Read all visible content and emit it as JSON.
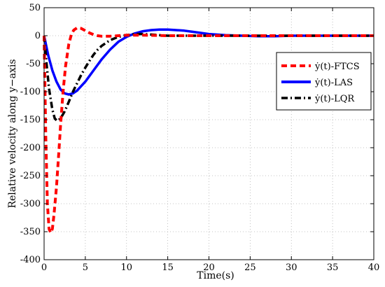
{
  "chart_data": {
    "type": "line",
    "xlabel": "Time(s)",
    "ylabel": "Relative velocity along y−axis",
    "xlim": [
      0,
      40
    ],
    "ylim": [
      -400,
      50
    ],
    "xticks": [
      0,
      5,
      10,
      15,
      20,
      25,
      30,
      35,
      40
    ],
    "yticks": [
      50,
      0,
      -50,
      -100,
      -150,
      -200,
      -250,
      -300,
      -350,
      -400
    ],
    "grid": true,
    "legend_placement": "right",
    "series": [
      {
        "name": "ẏ(t)-FTCS",
        "color": "#ff0000",
        "style": "dashed",
        "x": [
          0,
          0.2,
          0.4,
          0.6,
          0.8,
          1.0,
          1.2,
          1.5,
          1.8,
          2.0,
          2.3,
          2.6,
          3.0,
          3.3,
          3.6,
          4.0,
          4.5,
          5.0,
          5.5,
          6.0,
          6.5,
          7.0,
          8.0,
          9.0,
          10.0,
          12.0,
          15.0,
          20.0,
          25.0,
          30.0,
          35.0,
          40.0
        ],
        "y": [
          0,
          -180,
          -300,
          -345,
          -352,
          -345,
          -320,
          -270,
          -205,
          -160,
          -100,
          -55,
          -15,
          2,
          10,
          14,
          13,
          9,
          5,
          2,
          0,
          -1,
          -1,
          0,
          1,
          1,
          0,
          0,
          0,
          0,
          0,
          0
        ]
      },
      {
        "name": "ẏ(t)-LAS",
        "color": "#0000ff",
        "style": "solid",
        "x": [
          0,
          0.5,
          1.0,
          1.5,
          2.0,
          2.5,
          3.0,
          3.5,
          4.0,
          5.0,
          6.0,
          7.0,
          8.0,
          9.0,
          10.0,
          11.0,
          12.0,
          13.0,
          14.0,
          15.0,
          16.0,
          17.0,
          18.0,
          19.0,
          20.0,
          22.0,
          24.0,
          26.0,
          28.0,
          30.0,
          35.0,
          40.0
        ],
        "y": [
          0,
          -35,
          -62,
          -82,
          -96,
          -103,
          -105,
          -103,
          -98,
          -82,
          -62,
          -42,
          -25,
          -11,
          -2,
          4,
          8,
          10,
          11,
          11,
          10,
          9,
          7,
          5,
          3,
          1,
          0,
          -1,
          -1,
          0,
          0,
          0
        ]
      },
      {
        "name": "ẏ(t)-LQR",
        "color": "#000000",
        "style": "dashdot",
        "x": [
          0,
          0.3,
          0.6,
          1.0,
          1.3,
          1.6,
          2.0,
          2.5,
          3.0,
          3.5,
          4.0,
          4.5,
          5.0,
          5.5,
          6.0,
          6.5,
          7.0,
          8.0,
          9.0,
          10.0,
          11.0,
          12.0,
          13.0,
          14.0,
          15.0,
          17.0,
          20.0,
          25.0,
          30.0,
          35.0,
          40.0
        ],
        "y": [
          0,
          -50,
          -95,
          -132,
          -148,
          -152,
          -148,
          -135,
          -118,
          -100,
          -85,
          -70,
          -57,
          -45,
          -34,
          -25,
          -18,
          -8,
          -2,
          1,
          3,
          3,
          2,
          1,
          0,
          0,
          0,
          0,
          0,
          0,
          0
        ]
      }
    ]
  }
}
